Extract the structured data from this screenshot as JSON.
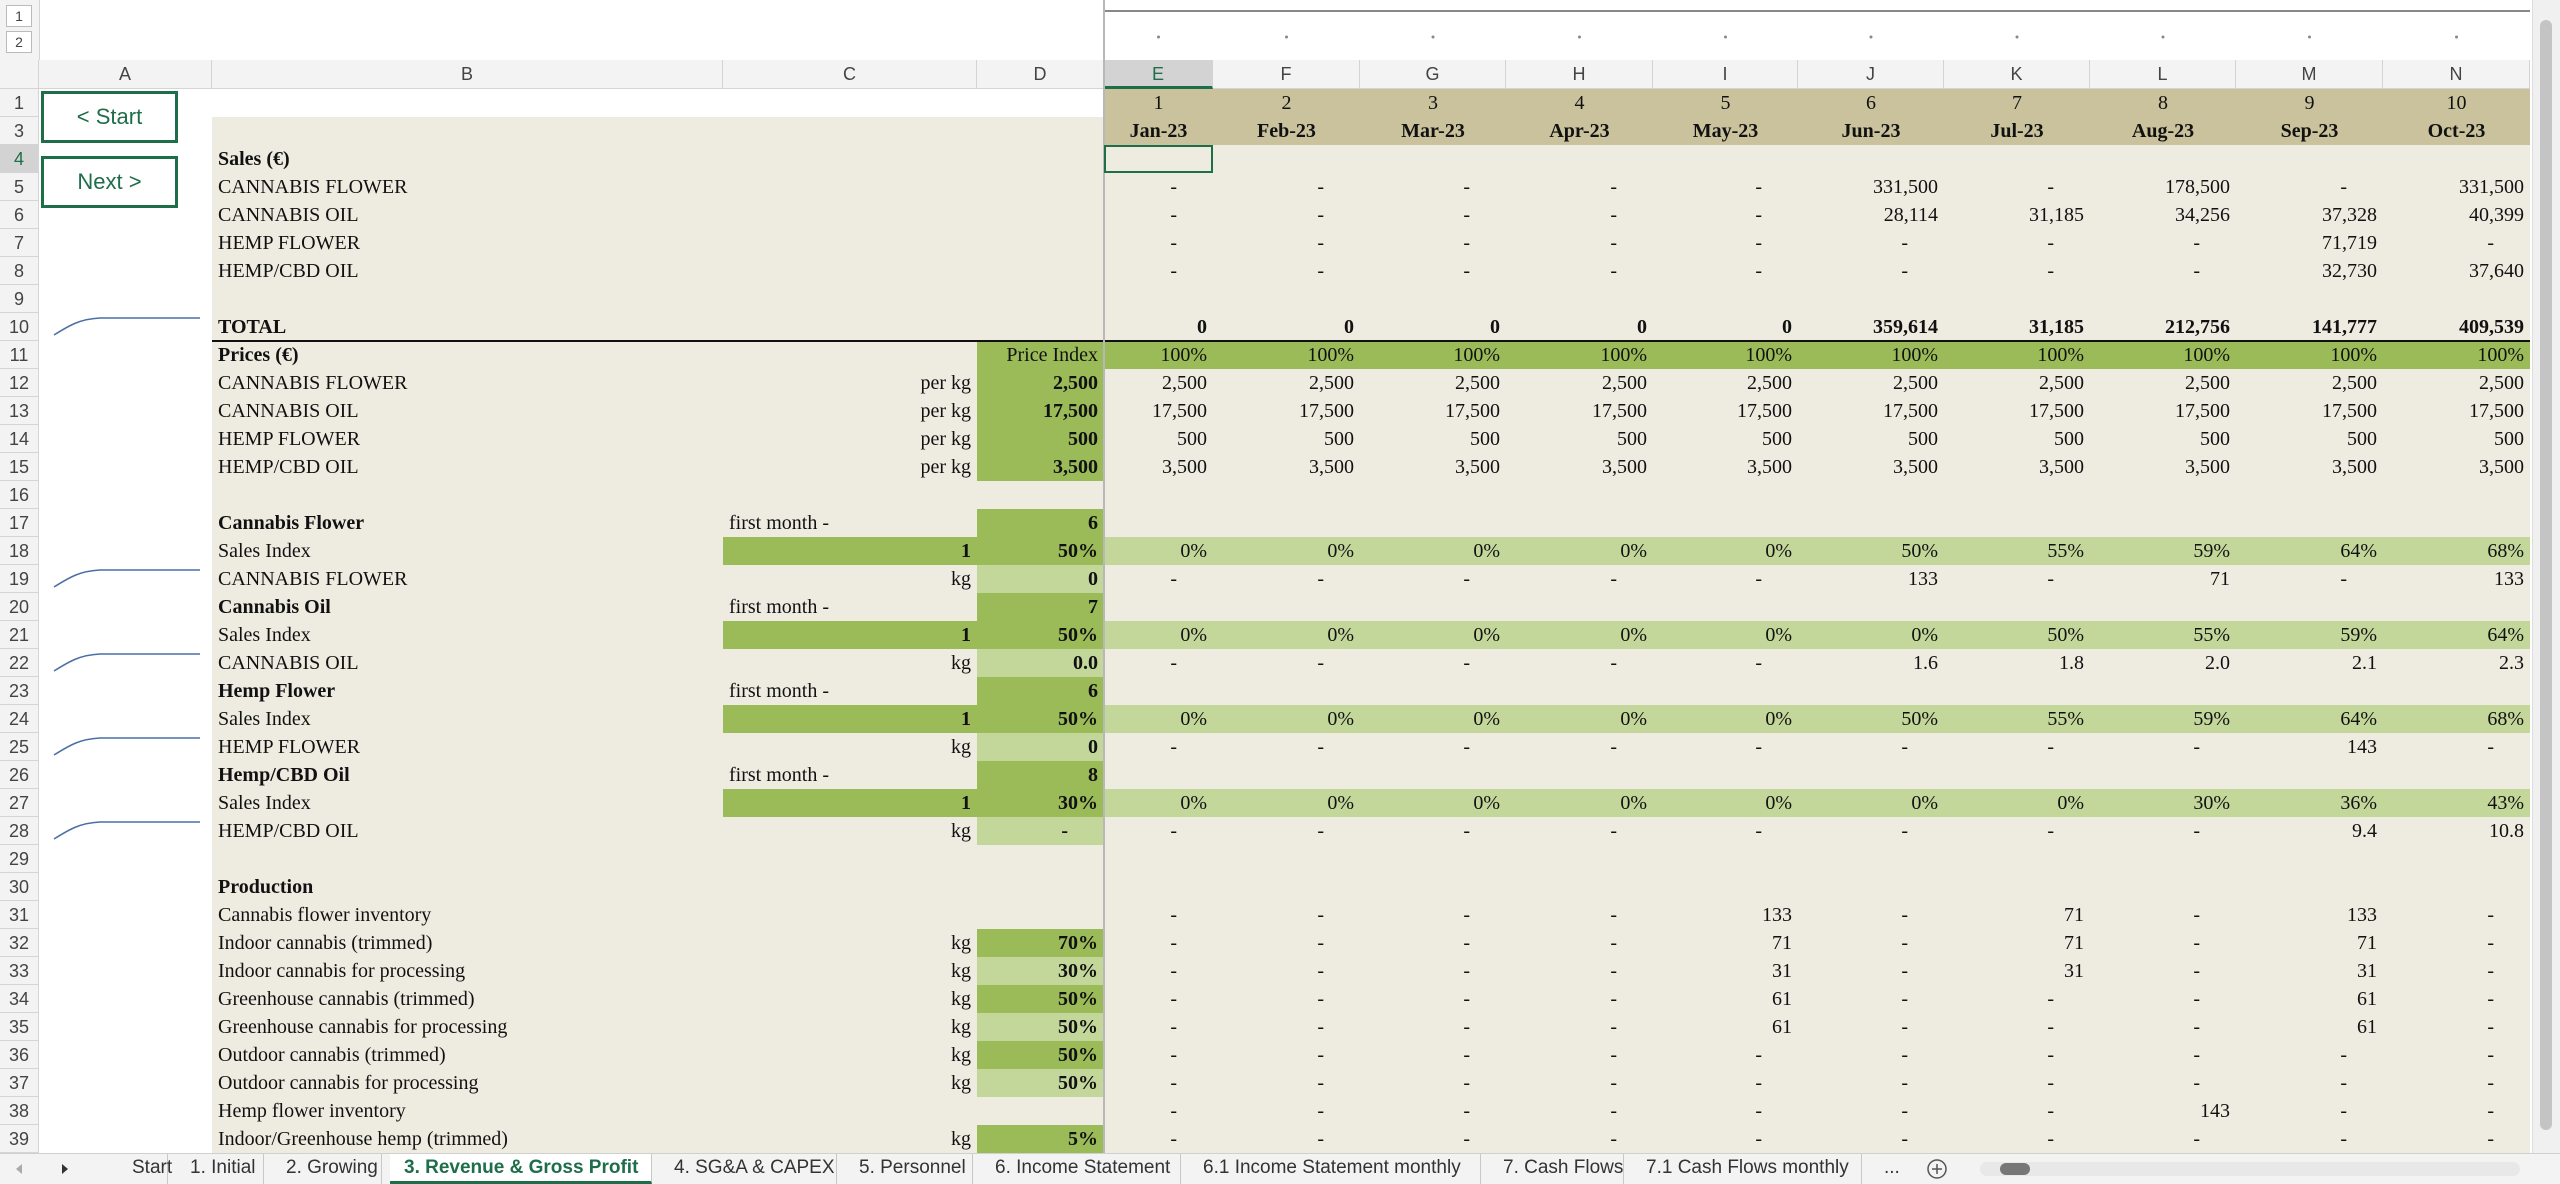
{
  "outline_levels": [
    "1",
    "2"
  ],
  "columns": [
    "A",
    "B",
    "C",
    "D",
    "E",
    "F",
    "G",
    "H",
    "I",
    "J",
    "K",
    "L",
    "M",
    "N"
  ],
  "row_headers": [
    "1",
    "3",
    "4",
    "5",
    "6",
    "7",
    "8",
    "9",
    "10",
    "11",
    "12",
    "13",
    "14",
    "15",
    "16",
    "17",
    "18",
    "19",
    "20",
    "21",
    "22",
    "23",
    "24",
    "25",
    "26",
    "27",
    "28",
    "29",
    "30",
    "31",
    "32",
    "33",
    "34",
    "35",
    "36",
    "37",
    "38",
    "39"
  ],
  "buttons": [
    "< Start",
    "Next >"
  ],
  "rows": [
    {
      "v": [
        "1",
        "2",
        "3",
        "4",
        "5",
        "6",
        "7",
        "8",
        "9",
        "10"
      ]
    },
    {
      "v": [
        "Jan-23",
        "Feb-23",
        "Mar-23",
        "Apr-23",
        "May-23",
        "Jun-23",
        "Jul-23",
        "Aug-23",
        "Sep-23",
        "Oct-23"
      ]
    },
    {
      "b": "Sales (€)"
    },
    {
      "b": "CANNABIS FLOWER",
      "v": [
        "-",
        "-",
        "-",
        "-",
        "-",
        "331,500",
        "-",
        "178,500",
        "-",
        "331,500"
      ]
    },
    {
      "b": "CANNABIS OIL",
      "v": [
        "-",
        "-",
        "-",
        "-",
        "-",
        "28,114",
        "31,185",
        "34,256",
        "37,328",
        "40,399"
      ]
    },
    {
      "b": "HEMP FLOWER",
      "v": [
        "-",
        "-",
        "-",
        "-",
        "-",
        "-",
        "-",
        "-",
        "71,719",
        "-"
      ]
    },
    {
      "b": "HEMP/CBD OIL",
      "v": [
        "-",
        "-",
        "-",
        "-",
        "-",
        "-",
        "-",
        "-",
        "32,730",
        "37,640"
      ]
    },
    {},
    {
      "b": "TOTAL",
      "v": [
        "0",
        "0",
        "0",
        "0",
        "0",
        "359,614",
        "31,185",
        "212,756",
        "141,777",
        "409,539"
      ]
    },
    {
      "b": "Prices (€)",
      "d": "Price Index",
      "v": [
        "100%",
        "100%",
        "100%",
        "100%",
        "100%",
        "100%",
        "100%",
        "100%",
        "100%",
        "100%"
      ]
    },
    {
      "b": "CANNABIS FLOWER",
      "c": "per kg",
      "d": "2,500",
      "v": [
        "2,500",
        "2,500",
        "2,500",
        "2,500",
        "2,500",
        "2,500",
        "2,500",
        "2,500",
        "2,500",
        "2,500"
      ]
    },
    {
      "b": "CANNABIS OIL",
      "c": "per kg",
      "d": "17,500",
      "v": [
        "17,500",
        "17,500",
        "17,500",
        "17,500",
        "17,500",
        "17,500",
        "17,500",
        "17,500",
        "17,500",
        "17,500"
      ]
    },
    {
      "b": "HEMP FLOWER",
      "c": "per kg",
      "d": "500",
      "v": [
        "500",
        "500",
        "500",
        "500",
        "500",
        "500",
        "500",
        "500",
        "500",
        "500"
      ]
    },
    {
      "b": "HEMP/CBD OIL",
      "c": "per kg",
      "d": "3,500",
      "v": [
        "3,500",
        "3,500",
        "3,500",
        "3,500",
        "3,500",
        "3,500",
        "3,500",
        "3,500",
        "3,500",
        "3,500"
      ]
    },
    {},
    {
      "b": "Cannabis Flower",
      "c": "first month -",
      "d": "6"
    },
    {
      "b": "Sales Index",
      "c": "1",
      "d": "50%",
      "v": [
        "0%",
        "0%",
        "0%",
        "0%",
        "0%",
        "50%",
        "55%",
        "59%",
        "64%",
        "68%"
      ]
    },
    {
      "b": "CANNABIS FLOWER",
      "c": "kg",
      "d": "0",
      "v": [
        "-",
        "-",
        "-",
        "-",
        "-",
        "133",
        "-",
        "71",
        "-",
        "133"
      ]
    },
    {
      "b": "Cannabis Oil",
      "c": "first month -",
      "d": "7"
    },
    {
      "b": "Sales Index",
      "c": "1",
      "d": "50%",
      "v": [
        "0%",
        "0%",
        "0%",
        "0%",
        "0%",
        "0%",
        "50%",
        "55%",
        "59%",
        "64%"
      ]
    },
    {
      "b": "CANNABIS OIL",
      "c": "kg",
      "d": "0.0",
      "v": [
        "-",
        "-",
        "-",
        "-",
        "-",
        "1.6",
        "1.8",
        "2.0",
        "2.1",
        "2.3"
      ]
    },
    {
      "b": "Hemp Flower",
      "c": "first month -",
      "d": "6"
    },
    {
      "b": "Sales Index",
      "c": "1",
      "d": "50%",
      "v": [
        "0%",
        "0%",
        "0%",
        "0%",
        "0%",
        "50%",
        "55%",
        "59%",
        "64%",
        "68%"
      ]
    },
    {
      "b": "HEMP FLOWER",
      "c": "kg",
      "d": "0",
      "v": [
        "-",
        "-",
        "-",
        "-",
        "-",
        "-",
        "-",
        "-",
        "143",
        "-"
      ]
    },
    {
      "b": "Hemp/CBD Oil",
      "c": "first month -",
      "d": "8"
    },
    {
      "b": "Sales Index",
      "c": "1",
      "d": "30%",
      "v": [
        "0%",
        "0%",
        "0%",
        "0%",
        "0%",
        "0%",
        "0%",
        "30%",
        "36%",
        "43%"
      ]
    },
    {
      "b": "HEMP/CBD OIL",
      "c": "kg",
      "d": "-",
      "v": [
        "-",
        "-",
        "-",
        "-",
        "-",
        "-",
        "-",
        "-",
        "9.4",
        "10.8"
      ]
    },
    {},
    {
      "b": "Production"
    },
    {
      "b": "Cannabis flower inventory",
      "v": [
        "-",
        "-",
        "-",
        "-",
        "133",
        "-",
        "71",
        "-",
        "133",
        "-"
      ]
    },
    {
      "b": "Indoor cannabis (trimmed)",
      "c": "kg",
      "d": "70%",
      "v": [
        "-",
        "-",
        "-",
        "-",
        "71",
        "-",
        "71",
        "-",
        "71",
        "-"
      ]
    },
    {
      "b": "Indoor cannabis for processing",
      "c": "kg",
      "d": "30%",
      "v": [
        "-",
        "-",
        "-",
        "-",
        "31",
        "-",
        "31",
        "-",
        "31",
        "-"
      ]
    },
    {
      "b": "Greenhouse cannabis (trimmed)",
      "c": "kg",
      "d": "50%",
      "v": [
        "-",
        "-",
        "-",
        "-",
        "61",
        "-",
        "-",
        "-",
        "61",
        "-"
      ]
    },
    {
      "b": "Greenhouse cannabis for processing",
      "c": "kg",
      "d": "50%",
      "v": [
        "-",
        "-",
        "-",
        "-",
        "61",
        "-",
        "-",
        "-",
        "61",
        "-"
      ]
    },
    {
      "b": "Outdoor cannabis (trimmed)",
      "c": "kg",
      "d": "50%",
      "v": [
        "-",
        "-",
        "-",
        "-",
        "-",
        "-",
        "-",
        "-",
        "-",
        "-"
      ]
    },
    {
      "b": "Outdoor cannabis for processing",
      "c": "kg",
      "d": "50%",
      "v": [
        "-",
        "-",
        "-",
        "-",
        "-",
        "-",
        "-",
        "-",
        "-",
        "-"
      ]
    },
    {
      "b": "Hemp flower inventory",
      "v": [
        "-",
        "-",
        "-",
        "-",
        "-",
        "-",
        "-",
        "143",
        "-",
        "-"
      ]
    },
    {
      "b": "Indoor/Greenhouse hemp (trimmed)",
      "c": "kg",
      "d": "5%",
      "v": [
        "-",
        "-",
        "-",
        "-",
        "-",
        "-",
        "-",
        "-",
        "-",
        "-"
      ]
    }
  ],
  "sheet_tabs": [
    "Start",
    "1. Initial",
    "2. Growing",
    "3. Revenue & Gross Profit",
    "4. SG&A & CAPEX",
    "5. Personnel",
    "6. Income Statement",
    "6.1 Income Statement monthly",
    "7. Cash Flows",
    "7.1 Cash Flows monthly"
  ],
  "more_tabs": "..."
}
